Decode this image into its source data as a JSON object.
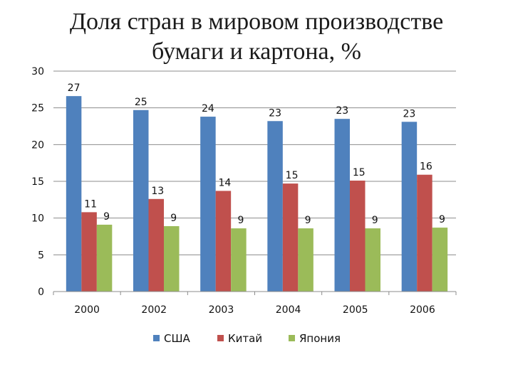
{
  "title": {
    "line1": "Доля стран в мировом производстве",
    "line2": "бумаги и картона, %"
  },
  "chart_data": {
    "type": "bar",
    "title": "Доля стран в мировом производстве бумаги и картона, %",
    "categories": [
      "2000",
      "2002",
      "2003",
      "2004",
      "2005",
      "2006"
    ],
    "series": [
      {
        "name": "США",
        "color": "#4f81bd",
        "values": [
          26.6,
          24.7,
          23.8,
          23.2,
          23.5,
          23.1
        ],
        "labels": [
          "27",
          "25",
          "24",
          "23",
          "23",
          "23"
        ]
      },
      {
        "name": "Китай",
        "color": "#c0504d",
        "values": [
          10.8,
          12.6,
          13.7,
          14.7,
          15.1,
          15.9
        ],
        "labels": [
          "11",
          "13",
          "14",
          "15",
          "15",
          "16"
        ]
      },
      {
        "name": "Япония",
        "color": "#9bbb59",
        "values": [
          9.1,
          8.9,
          8.6,
          8.6,
          8.6,
          8.7
        ],
        "labels": [
          "9",
          "9",
          "9",
          "9",
          "9",
          "9"
        ]
      }
    ],
    "ylim": [
      0,
      30
    ],
    "yticks": [
      0,
      5,
      10,
      15,
      20,
      25,
      30
    ],
    "grid": true,
    "legend": "bottom"
  }
}
